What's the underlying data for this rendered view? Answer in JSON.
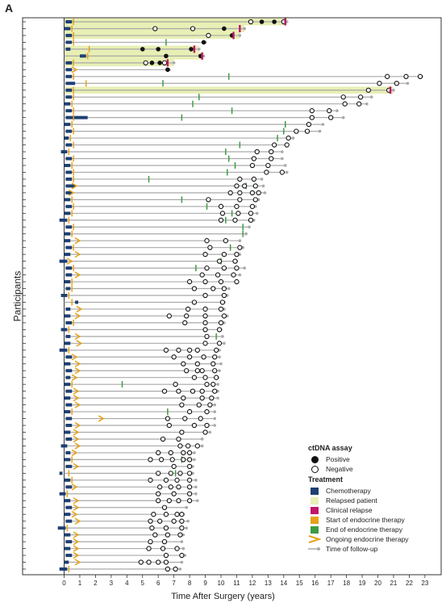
{
  "panel_letter": "A",
  "chart_data": {
    "type": "swimmer",
    "xlabel": "Time After Surgery (years)",
    "ylabel": "Participants",
    "xlim": [
      -0.5,
      23.5
    ],
    "xticks": [
      0,
      1,
      2,
      3,
      4,
      5,
      6,
      7,
      8,
      9,
      10,
      11,
      12,
      13,
      14,
      15,
      16,
      17,
      18,
      19,
      20,
      21,
      22,
      23
    ],
    "grid": false,
    "legend_position": "bottom-right",
    "colors": {
      "chemo": "#1d3f73",
      "relapsed": "#e8efb4",
      "clinical_relapse": "#c0166b",
      "endo_start": "#e6a21b",
      "endo_end": "#3f9a46",
      "followup": "#a9a9a9"
    },
    "legend": {
      "ctdna_title": "ctDNA assay",
      "positive": "Positive",
      "negative": "Negative",
      "treatment_title": "Treatment",
      "chemotherapy": "Chemotherapy",
      "relapsed_patient": "Relapsed patient",
      "clinical_relapse": "Clinical relapse",
      "start_endo": "Start of endocrine therapy",
      "end_endo": "End of endocrine therapy",
      "ongoing_endo": "Ongoing endocrine therapy",
      "follow_up": "Time of follow-up"
    },
    "participants": [
      {
        "fu": 14.2,
        "rel": true,
        "cr": 14.1,
        "chemo": [
          0.1,
          0.5
        ],
        "es": 0.6,
        "pos": [
          12.6,
          13.4
        ],
        "neg": [
          11.9,
          14.0
        ]
      },
      {
        "fu": 11.5,
        "rel": true,
        "cr": 11.2,
        "chemo": [
          0.0,
          0.4
        ],
        "es": 0.5,
        "pos": [
          10.2
        ],
        "neg": [
          5.8,
          8.2
        ]
      },
      {
        "fu": 11.2,
        "rel": true,
        "cr": 10.8,
        "chemo": [
          0.1,
          0.5
        ],
        "es": 0.6,
        "pos": [
          10.7
        ],
        "neg": [
          9.2
        ]
      },
      {
        "fu": 9.0,
        "chemo": [
          0.1,
          0.5
        ],
        "es": 0.6,
        "ee": 6.5,
        "pos": [
          8.9
        ],
        "neg": []
      },
      {
        "fu": 8.6,
        "rel": true,
        "cr": 8.3,
        "chemo": [
          0.1,
          0.4
        ],
        "es": 1.6,
        "pos": [
          5.0,
          6.0,
          8.1
        ],
        "neg": []
      },
      {
        "fu": 8.9,
        "rel": true,
        "cr": 8.8,
        "chemo": [
          1.0,
          1.4
        ],
        "es": 1.5,
        "pos": [
          6.5,
          8.7
        ],
        "neg": []
      },
      {
        "fu": 7.0,
        "rel": true,
        "cr": 6.6,
        "chemo": [
          0.1,
          0.5
        ],
        "es": 0.6,
        "pos": [
          5.6,
          6.1
        ],
        "neg": [
          5.2,
          6.4
        ]
      },
      {
        "fu": 6.7,
        "chemo": [
          0.1,
          0.5
        ],
        "arrow": 0.8,
        "pos": [
          6.6
        ],
        "neg": []
      },
      {
        "fu": 22.8,
        "chemo": [
          0.1,
          0.5
        ],
        "es": 0.6,
        "ee": 10.5,
        "neg": [
          20.6,
          21.8,
          22.7
        ]
      },
      {
        "fu": 21.9,
        "chemo": [
          0.1,
          0.7
        ],
        "es": 1.4,
        "ee": 6.3,
        "neg": [
          20.1,
          21.2
        ]
      },
      {
        "fu": 21.0,
        "rel": true,
        "cr": 20.8,
        "chemo": [
          0.1,
          0.5
        ],
        "es": 0.6,
        "neg": [
          19.4,
          20.7
        ]
      },
      {
        "fu": 19.6,
        "chemo": [
          0.1,
          0.5
        ],
        "es": 0.6,
        "ee": 8.6,
        "neg": [
          17.8,
          18.9
        ]
      },
      {
        "fu": 19.3,
        "chemo": [
          0.0,
          0.4
        ],
        "es": 0.5,
        "ee": 8.2,
        "neg": [
          17.9,
          18.8
        ]
      },
      {
        "fu": 17.4,
        "chemo": [
          0.1,
          0.5
        ],
        "es": 0.6,
        "ee": 10.7,
        "neg": [
          15.8,
          16.9
        ]
      },
      {
        "fu": 17.8,
        "chemo": [
          0.1,
          1.5
        ],
        "es": 0.6,
        "ee": 7.5,
        "neg": [
          15.8,
          17.0
        ]
      },
      {
        "fu": 16.5,
        "chemo": [
          0.0,
          0.4
        ],
        "es": 0.5,
        "ee": 14.1,
        "neg": [
          15.6
        ]
      },
      {
        "fu": 16.3,
        "chemo": [
          0.1,
          0.5
        ],
        "es": 0.6,
        "ee": 14.0,
        "neg": [
          14.8,
          15.5
        ]
      },
      {
        "fu": 14.6,
        "chemo": [
          0.0,
          0.3
        ],
        "es": 0.4,
        "ee": 13.6,
        "neg": [
          14.3
        ]
      },
      {
        "fu": 14.2,
        "chemo": [
          0.1,
          0.5
        ],
        "es": 0.6,
        "ee": 11.2,
        "neg": [
          13.4,
          14.2
        ]
      },
      {
        "fu": 13.9,
        "chemo": [
          -0.2,
          0.2
        ],
        "es": 0.3,
        "ee": 10.3,
        "neg": [
          12.3,
          13.2
        ]
      },
      {
        "fu": 13.9,
        "chemo": [
          0.1,
          0.5
        ],
        "es": 0.6,
        "ee": 10.5,
        "neg": [
          12.1,
          13.2
        ]
      },
      {
        "fu": 14.1,
        "chemo": [
          0.0,
          0.4
        ],
        "es": 0.5,
        "ee": 10.9,
        "neg": [
          12.0,
          13.0
        ]
      },
      {
        "fu": 14.2,
        "chemo": [
          0.1,
          0.5
        ],
        "es": 0.6,
        "ee": 10.4,
        "neg": [
          12.9,
          13.9
        ]
      },
      {
        "fu": 12.6,
        "chemo": [
          0.1,
          0.5
        ],
        "es": 0.6,
        "ee": 5.4,
        "neg": [
          11.2,
          12.1
        ]
      },
      {
        "fu": 12.7,
        "chemo": [
          0.1,
          0.7
        ],
        "arrow": 0.8,
        "ee": 11.6,
        "neg": [
          11.0,
          11.5,
          12.2
        ]
      },
      {
        "fu": 12.8,
        "chemo": [
          0.1,
          0.5
        ],
        "arrow": 0.6,
        "neg": [
          10.6,
          11.2,
          12.0,
          12.4
        ]
      },
      {
        "fu": 12.4,
        "chemo": [
          0.0,
          0.4
        ],
        "es": 0.5,
        "ee": 7.5,
        "neg": [
          9.2,
          11.2,
          12.2
        ]
      },
      {
        "fu": 12.2,
        "chemo": [
          0.1,
          0.5
        ],
        "es": 0.6,
        "ee": 9.1,
        "neg": [
          10.0,
          11.0,
          12.0
        ]
      },
      {
        "fu": 12.3,
        "chemo": [
          0.0,
          0.4
        ],
        "es": 0.5,
        "ee": 10.7,
        "neg": [
          10.1,
          11.1,
          11.9
        ]
      },
      {
        "fu": 12.1,
        "chemo": [
          -0.3,
          0.2
        ],
        "es": 0.3,
        "ee": 10.3,
        "neg": [
          10.0,
          10.9,
          11.9
        ]
      },
      {
        "fu": 11.8,
        "chemo": [
          0.1,
          0.5
        ],
        "es": 0.6,
        "ee": 11.4,
        "neg": []
      },
      {
        "fu": 11.6,
        "chemo": [
          0.0,
          0.4
        ],
        "es": 0.5,
        "ee": 11.4,
        "neg": []
      },
      {
        "fu": 11.2,
        "chemo": [
          0.0,
          0.4
        ],
        "arrow": 1.0,
        "neg": [
          9.1,
          10.3
        ]
      },
      {
        "fu": 11.4,
        "chemo": [
          0.1,
          0.5
        ],
        "es": 0.6,
        "ee": 10.6,
        "neg": [
          9.3,
          11.2
        ]
      },
      {
        "fu": 11.2,
        "chemo": [
          0.0,
          0.4
        ],
        "arrow": 1.0,
        "neg": [
          9.0,
          10.2,
          11.0
        ]
      },
      {
        "fu": 11.0,
        "chemo": [
          -0.3,
          0.2
        ],
        "arrow": 0.5,
        "ee": 10.0,
        "neg": [
          9.9,
          10.9
        ]
      },
      {
        "fu": 11.5,
        "chemo": [
          0.1,
          0.5
        ],
        "es": 0.6,
        "ee": 8.4,
        "neg": [
          9.1,
          10.2,
          11.0
        ]
      },
      {
        "fu": 11.2,
        "chemo": [
          0.1,
          0.5
        ],
        "arrow": 1.0,
        "neg": [
          8.8,
          9.8,
          10.8
        ]
      },
      {
        "fu": 11.0,
        "chemo": [
          0.0,
          0.4
        ],
        "es": 0.5,
        "neg": [
          8.0,
          9.0,
          10.0,
          11.0
        ]
      },
      {
        "fu": 10.5,
        "chemo": [
          0.1,
          0.4
        ],
        "es": 0.5,
        "neg": [
          8.3,
          9.5,
          10.2
        ]
      },
      {
        "fu": 10.4,
        "chemo": [
          -0.2,
          0.2
        ],
        "es": 0.3,
        "neg": [
          9.0,
          10.2
        ]
      },
      {
        "fu": 10.2,
        "chemo": [
          0.7,
          0.9
        ],
        "es": 0.5,
        "neg": [
          8.3,
          10.1
        ]
      },
      {
        "fu": 10.2,
        "chemo": [
          0.1,
          0.4
        ],
        "arrow": 1.1,
        "neg": [
          7.9,
          9.0,
          10.0
        ]
      },
      {
        "fu": 10.4,
        "chemo": [
          0.0,
          0.4
        ],
        "arrow": 1.0,
        "neg": [
          6.7,
          7.8,
          9.0,
          10.2
        ]
      },
      {
        "fu": 10.2,
        "chemo": [
          0.1,
          0.5
        ],
        "es": 0.6,
        "neg": [
          7.7,
          9.0,
          10.0
        ]
      },
      {
        "fu": 10.0,
        "chemo": [
          -0.2,
          0.2
        ],
        "es": 0.3,
        "neg": [
          9.0,
          9.9
        ]
      },
      {
        "fu": 10.1,
        "chemo": [
          0.1,
          0.4
        ],
        "arrow": 1.0,
        "ee": 9.7,
        "neg": [
          9.1
        ]
      },
      {
        "fu": 10.2,
        "chemo": [
          0.0,
          0.4
        ],
        "arrow": 1.1,
        "neg": [
          9.0,
          9.9
        ]
      },
      {
        "fu": 9.9,
        "chemo": [
          -0.3,
          0.2
        ],
        "es": 0.3,
        "neg": [
          6.5,
          7.3,
          8.0,
          8.5,
          9.7
        ]
      },
      {
        "fu": 9.9,
        "chemo": [
          0.1,
          0.5
        ],
        "arrow": 0.8,
        "neg": [
          7.0,
          8.0,
          8.9,
          9.6
        ]
      },
      {
        "fu": 10.0,
        "chemo": [
          0.0,
          0.4
        ],
        "arrow": 1.0,
        "neg": [
          7.6,
          8.5,
          9.5
        ]
      },
      {
        "fu": 9.9,
        "chemo": [
          0.1,
          0.5
        ],
        "arrow": 1.0,
        "neg": [
          7.8,
          8.5,
          8.8,
          9.6
        ]
      },
      {
        "fu": 9.8,
        "chemo": [
          0.1,
          0.4
        ],
        "arrow": 0.8,
        "neg": [
          8.3,
          9.0,
          9.7
        ]
      },
      {
        "fu": 9.8,
        "chemo": [
          0.0,
          0.4
        ],
        "es": 0.5,
        "ee": 3.7,
        "neg": [
          7.1,
          9.1,
          9.5
        ]
      },
      {
        "fu": 9.8,
        "chemo": [
          0.1,
          0.5
        ],
        "arrow": 0.9,
        "neg": [
          6.4,
          7.3,
          8.2,
          8.8,
          9.6
        ]
      },
      {
        "fu": 9.8,
        "chemo": [
          0.0,
          0.4
        ],
        "arrow": 0.9,
        "neg": [
          7.6,
          8.8,
          9.4
        ]
      },
      {
        "fu": 9.6,
        "chemo": [
          0.1,
          0.5
        ],
        "arrow": 1.0,
        "neg": [
          7.5,
          8.6,
          9.3
        ]
      },
      {
        "fu": 9.6,
        "chemo": [
          0.0,
          0.4
        ],
        "es": 0.5,
        "ee": 6.6,
        "neg": [
          8.0,
          9.1
        ]
      },
      {
        "fu": 9.6,
        "chemo": [
          0.1,
          0.5
        ],
        "arrow": 2.5,
        "neg": [
          6.6,
          7.7,
          8.7
        ]
      },
      {
        "fu": 9.6,
        "chemo": [
          0.1,
          0.5
        ],
        "arrow": 1.0,
        "neg": [
          6.7,
          8.3,
          9.1
        ]
      },
      {
        "fu": 9.3,
        "chemo": [
          0.0,
          0.4
        ],
        "arrow": 0.9,
        "neg": [
          7.5,
          9.0
        ]
      },
      {
        "fu": 8.8,
        "chemo": [
          0.1,
          0.5
        ],
        "arrow": 0.9,
        "neg": [
          6.3,
          7.3
        ]
      },
      {
        "fu": 8.8,
        "chemo": [
          -0.2,
          0.2
        ],
        "arrow": 1.0,
        "neg": [
          7.4,
          7.9,
          8.5
        ]
      },
      {
        "fu": 8.3,
        "chemo": [
          0.1,
          0.4
        ],
        "arrow": 0.8,
        "neg": [
          6.0,
          6.8,
          7.6,
          8.0
        ]
      },
      {
        "fu": 8.3,
        "chemo": [
          0.0,
          0.4
        ],
        "es": 0.5,
        "ee": 7.5,
        "neg": [
          5.5,
          6.2,
          6.9,
          7.6,
          8.0
        ]
      },
      {
        "fu": 8.2,
        "chemo": [
          0.1,
          0.5
        ],
        "arrow": 0.9,
        "neg": [
          7.0,
          8.0
        ]
      },
      {
        "fu": 8.2,
        "chemo": [
          -0.3,
          -0.1
        ],
        "es": 0.3,
        "ee": 7.1,
        "neg": [
          6.0,
          6.8,
          7.4,
          8.0
        ]
      },
      {
        "fu": 8.4,
        "chemo": [
          0.0,
          0.4
        ],
        "es": 0.5,
        "neg": [
          5.5,
          6.5,
          7.2,
          8.0
        ]
      },
      {
        "fu": 8.4,
        "chemo": [
          0.1,
          0.5
        ],
        "arrow": 0.8,
        "neg": [
          6.1,
          6.8,
          7.3,
          8.0
        ]
      },
      {
        "fu": 8.4,
        "chemo": [
          -0.3,
          0.1
        ],
        "es": 0.2,
        "neg": [
          6.0,
          7.0,
          8.0
        ]
      },
      {
        "fu": 8.5,
        "chemo": [
          0.0,
          0.4
        ],
        "arrow": 0.9,
        "neg": [
          6.0,
          6.7,
          7.3,
          8.0
        ]
      },
      {
        "fu": 7.8,
        "chemo": [
          0.1,
          0.5
        ],
        "arrow": 0.9,
        "neg": [
          6.4
        ]
      },
      {
        "fu": 7.6,
        "chemo": [
          0.0,
          0.4
        ],
        "arrow": 0.8,
        "neg": [
          5.7,
          6.5,
          7.2,
          7.5
        ]
      },
      {
        "fu": 7.9,
        "chemo": [
          0.1,
          0.5
        ],
        "arrow": 1.0,
        "neg": [
          5.5,
          6.1,
          7.0,
          7.5
        ]
      },
      {
        "fu": 7.8,
        "chemo": [
          -0.4,
          0.1
        ],
        "es": 0.2,
        "neg": [
          5.6,
          6.5,
          7.5
        ]
      },
      {
        "fu": 7.6,
        "chemo": [
          0.0,
          0.4
        ],
        "arrow": 0.9,
        "neg": [
          5.8,
          6.6,
          7.4
        ]
      },
      {
        "fu": 7.5,
        "chemo": [
          0.1,
          0.5
        ],
        "arrow": 0.9,
        "neg": [
          5.5,
          6.4
        ]
      },
      {
        "fu": 7.6,
        "chemo": [
          0.0,
          0.4
        ],
        "arrow": 0.9,
        "neg": [
          5.4,
          6.3,
          7.2
        ]
      },
      {
        "fu": 7.7,
        "chemo": [
          0.1,
          0.5
        ],
        "arrow": 0.9,
        "neg": [
          6.5,
          7.5
        ]
      },
      {
        "fu": 7.5,
        "chemo": [
          0.0,
          0.3
        ],
        "arrow": 1.0,
        "neg": [
          4.9,
          5.4,
          6.0,
          6.5
        ]
      },
      {
        "fu": 7.4,
        "chemo": [
          -0.3,
          0.2
        ],
        "es": 0.3,
        "neg": [
          6.6,
          7.1
        ]
      }
    ]
  }
}
